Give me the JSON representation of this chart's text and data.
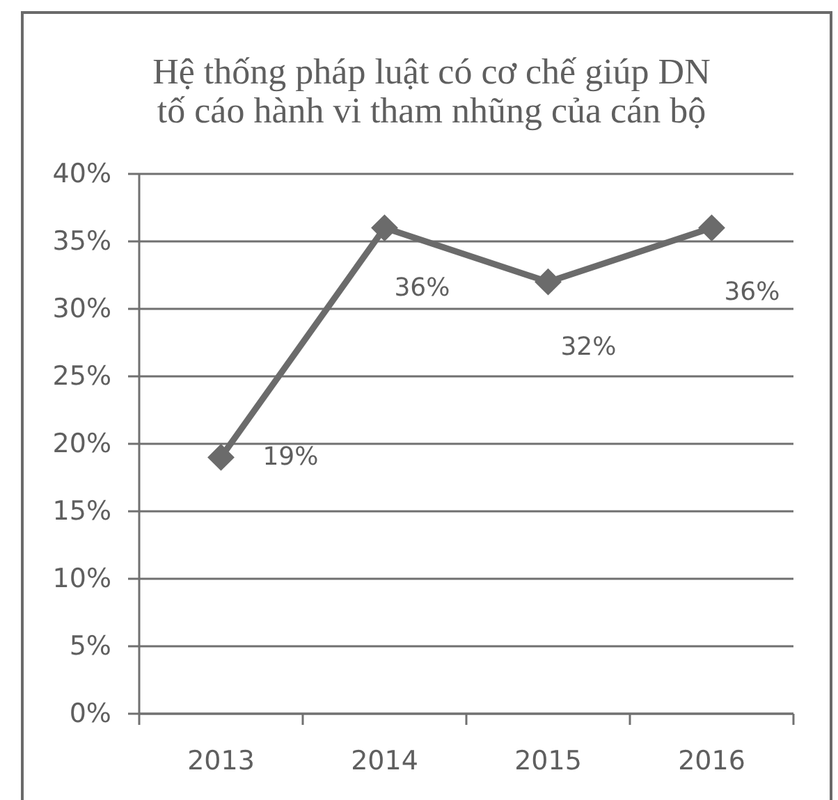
{
  "chart_data": {
    "type": "line",
    "title": "Hệ thống pháp luật có cơ chế giúp DN\ntố cáo hành vi tham nhũng của cán bộ",
    "categories": [
      "2013",
      "2014",
      "2015",
      "2016"
    ],
    "series": [
      {
        "color": "#6b6b6b",
        "values": [
          19,
          36,
          32,
          36
        ],
        "value_labels": [
          "19%",
          "36%",
          "32%",
          "36%"
        ]
      }
    ],
    "ylim": [
      0,
      40
    ],
    "yticks": [
      {
        "value": 0,
        "label": "0%"
      },
      {
        "value": 5,
        "label": "5%"
      },
      {
        "value": 10,
        "label": "10%"
      },
      {
        "value": 15,
        "label": "15%"
      },
      {
        "value": 20,
        "label": "20%"
      },
      {
        "value": 25,
        "label": "25%"
      },
      {
        "value": 30,
        "label": "30%"
      },
      {
        "value": 35,
        "label": "35%"
      },
      {
        "value": 40,
        "label": "40%"
      }
    ],
    "grid": "y",
    "marker": "diamond",
    "line_style": "solid"
  }
}
